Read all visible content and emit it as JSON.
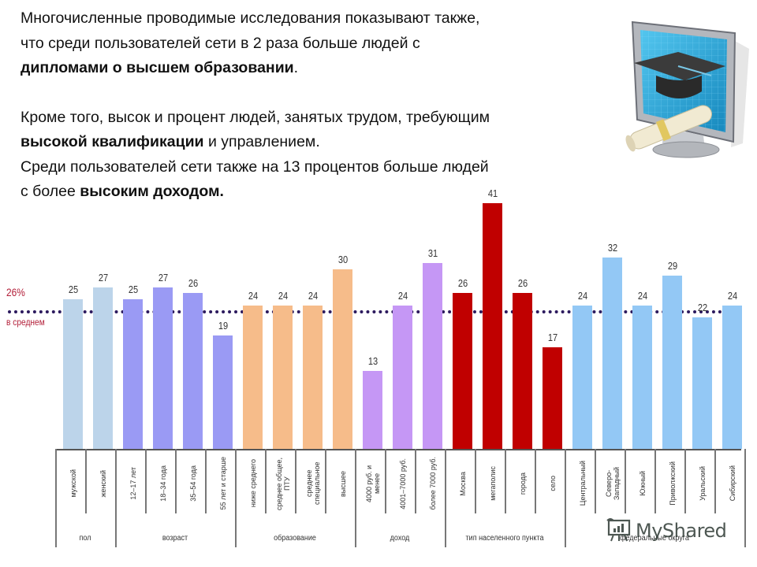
{
  "text": {
    "p1_line1": "Многочисленные проводимые исследования показывают также,",
    "p1_line2": "что среди пользователей сети в 2 раза больше людей с",
    "p1_line3_bold": "дипломами о высшем образовании",
    "p1_line3_end": ".",
    "p2_line1": "Кроме того, высок и процент людей, занятых трудом, требующим",
    "p2_line2_bold": "высокой квалификации",
    "p2_line2_end": " и управлением.",
    "p3_line1": "Среди пользователей сети также на 13 процентов больше людей",
    "p3_line2_start": "с более ",
    "p3_line2_bold": "высоким доходом."
  },
  "illustration": {
    "icon": "monitor-with-graduation-cap-and-diploma-icon",
    "colors": {
      "screen": "#29a9d8",
      "frame": "#b9bcc2",
      "cap": "#3a3a3a",
      "diploma": "#f1ead2"
    }
  },
  "average": {
    "value_label": "26%",
    "caption": "в среднем",
    "line_color": "#2c1a5e",
    "text_color": "#b3203a"
  },
  "watermark": {
    "icon": "presentation-board-icon",
    "text": "MyShared"
  },
  "chart_data": {
    "type": "bar",
    "title": "",
    "xlabel": "",
    "ylabel": "",
    "ylim": [
      0,
      45
    ],
    "grid": false,
    "reference_line": {
      "value": 26,
      "label": "26% в среднем",
      "style": "dotted"
    },
    "groups": [
      {
        "name": "пол",
        "color": "#bcd4ea",
        "categories": [
          "мужской",
          "женский"
        ],
        "values": [
          25,
          27
        ]
      },
      {
        "name": "возраст",
        "color": "#9a9af4",
        "categories": [
          "12–17 лет",
          "18–34 года",
          "35–54 года",
          "55 лет и старше"
        ],
        "values": [
          25,
          27,
          26,
          19
        ]
      },
      {
        "name": "образование",
        "color": "#f6bc8a",
        "categories": [
          "ниже среднего",
          "среднее общее, ПТУ",
          "среднее специальное",
          "высшее"
        ],
        "values": [
          24,
          24,
          24,
          30
        ]
      },
      {
        "name": "доход",
        "color": "#c597f5",
        "categories": [
          "4000 руб. и менее",
          "4001–7000 руб.",
          "более 7000 руб."
        ],
        "values": [
          13,
          24,
          31
        ]
      },
      {
        "name": "тип населенного пункта",
        "color": "#c00000",
        "categories": [
          "Москва",
          "мегаполис",
          "города",
          "село"
        ],
        "values": [
          26,
          41,
          26,
          17
        ]
      },
      {
        "name": "федеральные округа",
        "color": "#93c8f5",
        "categories": [
          "Центральный",
          "Северо-Западный",
          "Южный",
          "Приволжский",
          "Уральский",
          "Сибирский"
        ],
        "values": [
          24,
          32,
          24,
          29,
          22,
          24
        ]
      }
    ],
    "categories": [
      "мужской",
      "женский",
      "12–17 лет",
      "18–34 года",
      "35–54 года",
      "55 лет и старше",
      "ниже среднего",
      "среднее общее, ПТУ",
      "среднее специальное",
      "высшее",
      "4000 руб. и менее",
      "4001–7000 руб.",
      "более 7000 руб.",
      "Москва",
      "мегаполис",
      "города",
      "село",
      "Центральный",
      "Северо-Западный",
      "Южный",
      "Приволжский",
      "Уральский",
      "Сибирский"
    ],
    "values": [
      25,
      27,
      25,
      27,
      26,
      19,
      24,
      24,
      24,
      30,
      13,
      24,
      31,
      26,
      41,
      26,
      17,
      24,
      32,
      24,
      29,
      22,
      24
    ]
  }
}
